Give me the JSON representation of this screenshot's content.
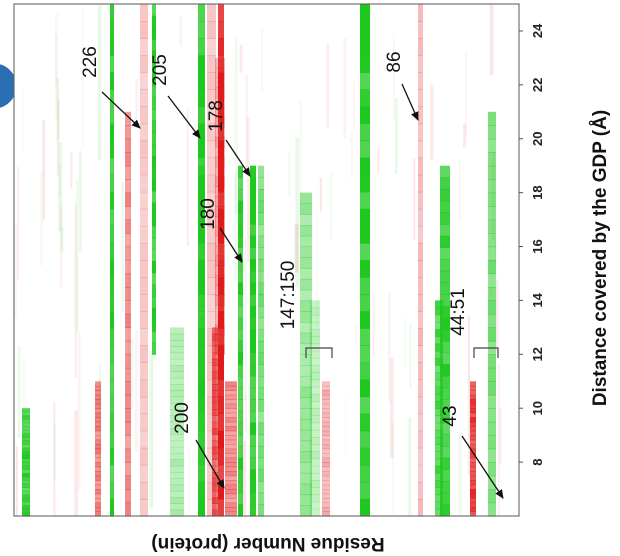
{
  "chart_data": {
    "type": "heatmap",
    "title": "",
    "xlabel": "Residue Number (protein)",
    "ylabel": "Distance covered by the GDP (Å)",
    "distance_range": [
      6,
      25
    ],
    "distance_ticks": [
      8,
      10,
      12,
      14,
      16,
      18,
      20,
      22,
      24
    ],
    "colors": {
      "positive": "#1ec81e",
      "negative": "#e01a1a",
      "bracket": "#444444"
    },
    "annotations": [
      {
        "label": "226",
        "distance": 20.8
      },
      {
        "label": "205",
        "distance": 20.6
      },
      {
        "label": "178",
        "distance": 19.0
      },
      {
        "label": "180",
        "distance": 15.8
      },
      {
        "label": "200",
        "distance": 6.5
      },
      {
        "label": "86",
        "distance": 21.0
      },
      {
        "label": "43",
        "distance": 6.5
      },
      {
        "label": "147:150",
        "distance": 12.0
      },
      {
        "label": "44:51",
        "distance": 12.0
      }
    ],
    "bands": [
      {
        "color": "green",
        "intensity": 0.9,
        "range": [
          6,
          10
        ]
      },
      {
        "color": "red",
        "intensity": 0.55,
        "range": [
          6,
          11
        ]
      },
      {
        "color": "green",
        "intensity": 1.0,
        "range": [
          6,
          25
        ]
      },
      {
        "color": "red",
        "intensity": 0.5,
        "range": [
          6,
          21
        ]
      },
      {
        "color": "red",
        "intensity": 0.25,
        "range": [
          6,
          25
        ]
      },
      {
        "color": "green",
        "intensity": 0.95,
        "range": [
          12,
          25
        ]
      },
      {
        "color": "green",
        "intensity": 0.35,
        "range": [
          6,
          13
        ]
      },
      {
        "color": "green",
        "intensity": 0.55,
        "range": [
          6,
          19
        ]
      },
      {
        "color": "red",
        "intensity": 0.25,
        "range": [
          6,
          25
        ]
      },
      {
        "color": "red",
        "intensity": 0.7,
        "range": [
          6,
          13
        ]
      },
      {
        "color": "red",
        "intensity": 0.4,
        "range": [
          12,
          23
        ]
      },
      {
        "color": "green",
        "intensity": 1.0,
        "range": [
          6,
          25
        ]
      },
      {
        "color": "red",
        "intensity": 0.5,
        "range": [
          6,
          11
        ]
      },
      {
        "color": "red",
        "intensity": 1.0,
        "range": [
          6,
          25
        ]
      },
      {
        "color": "green",
        "intensity": 0.95,
        "range": [
          6,
          19
        ]
      },
      {
        "color": "green",
        "intensity": 1.0,
        "range": [
          6,
          19
        ]
      },
      {
        "color": "green",
        "intensity": 0.6,
        "range": [
          6,
          19
        ]
      },
      {
        "color": "green",
        "intensity": 0.45,
        "range": [
          6,
          18
        ]
      },
      {
        "color": "green",
        "intensity": 0.3,
        "range": [
          6,
          14
        ]
      },
      {
        "color": "red",
        "intensity": 0.35,
        "range": [
          6,
          11
        ]
      },
      {
        "color": "green",
        "intensity": 1.0,
        "range": [
          6,
          25
        ]
      },
      {
        "color": "red",
        "intensity": 0.3,
        "range": [
          6,
          25
        ]
      },
      {
        "color": "green",
        "intensity": 0.8,
        "range": [
          6,
          14
        ]
      },
      {
        "color": "green",
        "intensity": 0.9,
        "range": [
          6,
          19
        ]
      },
      {
        "color": "red",
        "intensity": 0.85,
        "range": [
          6,
          11
        ]
      },
      {
        "color": "green",
        "intensity": 0.6,
        "range": [
          6,
          21
        ]
      }
    ]
  }
}
